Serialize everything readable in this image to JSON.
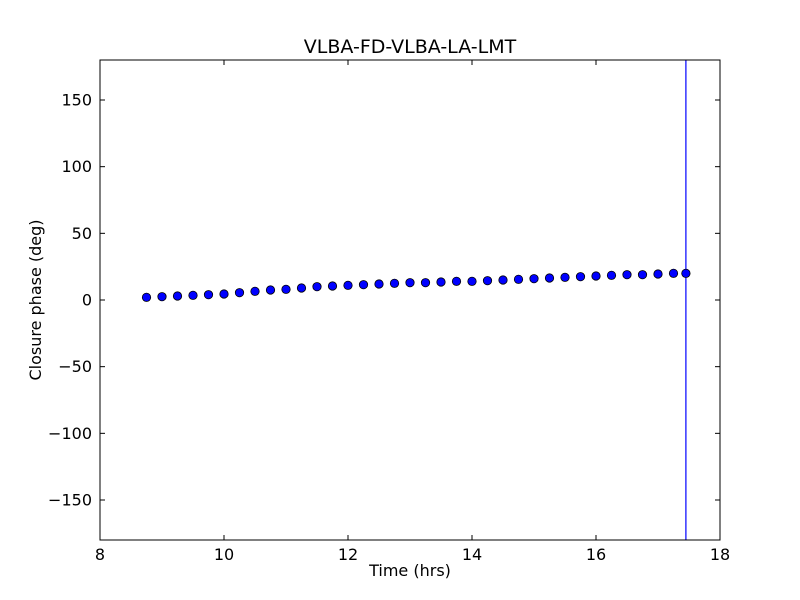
{
  "chart_data": {
    "type": "scatter",
    "title": "VLBA-FD-VLBA-LA-LMT",
    "xlabel": "Time (hrs)",
    "ylabel": "Closure phase (deg)",
    "xlim": [
      8,
      18
    ],
    "ylim": [
      -180,
      180
    ],
    "xticks": [
      8,
      10,
      12,
      14,
      16,
      18
    ],
    "xtick_labels": [
      "8",
      "10",
      "12",
      "14",
      "16",
      "18"
    ],
    "yticks": [
      -150,
      -100,
      -50,
      0,
      50,
      100,
      150
    ],
    "ytick_labels": [
      "−150",
      "−100",
      "−50",
      "0",
      "50",
      "100",
      "150"
    ],
    "grid": false,
    "series": [
      {
        "color": "#0000ff",
        "marker": "circle",
        "x": [
          8.75,
          9.0,
          9.25,
          9.5,
          9.75,
          10.0,
          10.25,
          10.5,
          10.75,
          11.0,
          11.25,
          11.5,
          11.75,
          12.0,
          12.25,
          12.5,
          12.75,
          13.0,
          13.25,
          13.5,
          13.75,
          14.0,
          14.25,
          14.5,
          14.75,
          15.0,
          15.25,
          15.5,
          15.75,
          16.0,
          16.25,
          16.5,
          16.75,
          17.0,
          17.25,
          17.45
        ],
        "y": [
          2,
          2.5,
          3,
          3.5,
          4,
          4.5,
          5.5,
          6.5,
          7.5,
          8,
          9,
          10,
          10.5,
          11,
          11.5,
          12,
          12.5,
          13,
          13,
          13.5,
          14,
          14,
          14.5,
          15,
          15.5,
          16,
          16.5,
          17,
          17.5,
          18,
          18.5,
          19,
          19,
          19.5,
          20,
          20
        ]
      }
    ],
    "vlines": [
      {
        "x": 17.45,
        "color": "#0000ff"
      }
    ]
  }
}
